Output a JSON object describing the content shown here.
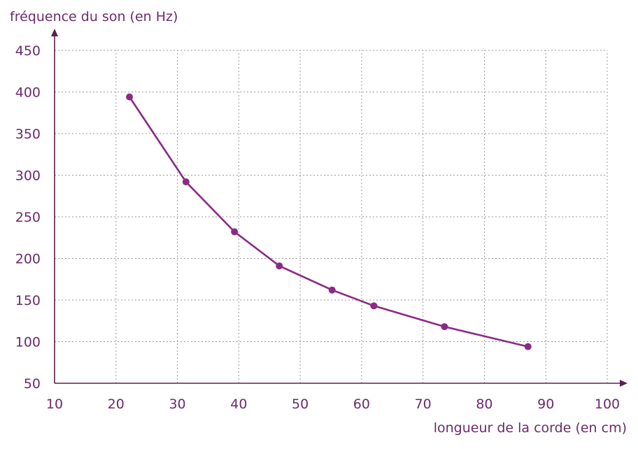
{
  "chart_data": {
    "type": "line",
    "ylabel": "fréquence du son (en Hz)",
    "xlabel": "longueur de la corde (en cm)",
    "xlim": [
      10,
      100
    ],
    "ylim": [
      50,
      450
    ],
    "x_ticks": [
      10,
      20,
      30,
      40,
      50,
      60,
      70,
      80,
      90,
      100
    ],
    "y_ticks": [
      50,
      100,
      150,
      200,
      250,
      300,
      350,
      400,
      450
    ],
    "grid": true,
    "x": [
      22.2,
      31.4,
      39.3,
      46.6,
      55.2,
      62.0,
      73.5,
      87.1
    ],
    "y": [
      394,
      292,
      232,
      191,
      162,
      143,
      118,
      94
    ],
    "colors": {
      "series": "#8b2a86",
      "text": "#6b2a6b",
      "axis": "#5a2050",
      "grid": "#9a9a9a"
    }
  }
}
